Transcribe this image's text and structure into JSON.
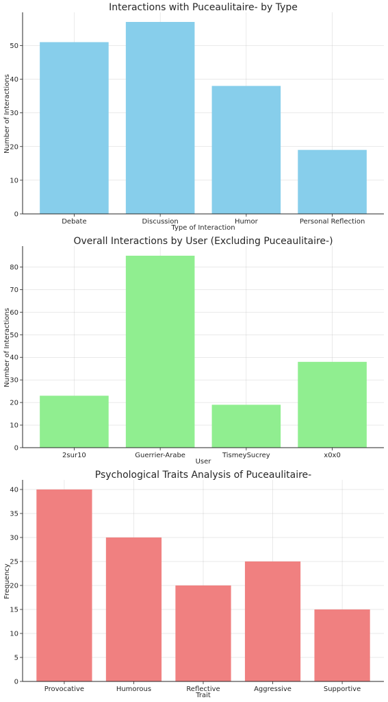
{
  "chart_data": [
    {
      "type": "bar",
      "title": "Interactions with Puceaulitaire- by Type",
      "xlabel": "Type of Interaction",
      "ylabel": "Number of Interactions",
      "categories": [
        "Debate",
        "Discussion",
        "Humor",
        "Personal Reflection"
      ],
      "values": [
        51,
        57,
        38,
        19
      ],
      "ylim": [
        0,
        59.85
      ],
      "yticks": [
        0,
        10,
        20,
        30,
        40,
        50
      ],
      "color": "#87ceeb",
      "grid": true
    },
    {
      "type": "bar",
      "title": "Overall Interactions by User (Excluding Puceaulitaire-)",
      "xlabel": "User",
      "ylabel": "Number of Interactions",
      "categories": [
        "2sur10",
        "Guerrier-Arabe",
        "TismeySucrey",
        "x0x0"
      ],
      "values": [
        23,
        85,
        19,
        38
      ],
      "ylim": [
        0,
        89.25
      ],
      "yticks": [
        0,
        10,
        20,
        30,
        40,
        50,
        60,
        70,
        80
      ],
      "color": "#90ee90",
      "grid": true
    },
    {
      "type": "bar",
      "title": "Psychological Traits Analysis of Puceaulitaire-",
      "xlabel": "Trait",
      "ylabel": "Frequency",
      "categories": [
        "Provocative",
        "Humorous",
        "Reflective",
        "Aggressive",
        "Supportive"
      ],
      "values": [
        40,
        30,
        20,
        25,
        15
      ],
      "ylim": [
        0,
        42
      ],
      "yticks": [
        0,
        5,
        10,
        15,
        20,
        25,
        30,
        35,
        40
      ],
      "color": "#f08080",
      "grid": true
    }
  ]
}
